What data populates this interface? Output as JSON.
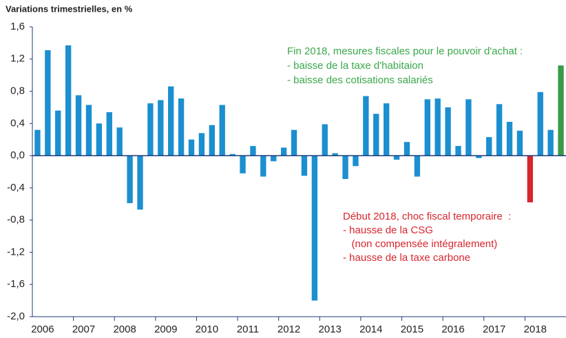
{
  "chart_data": {
    "type": "bar",
    "title": "Variations trimestrielles, en %",
    "categories": [
      "2006",
      null,
      null,
      null,
      "2007",
      null,
      null,
      null,
      "2008",
      null,
      null,
      null,
      "2009",
      null,
      null,
      null,
      "2010",
      null,
      null,
      null,
      "2011",
      null,
      null,
      null,
      "2012",
      null,
      null,
      null,
      "2013",
      null,
      null,
      null,
      "2014",
      null,
      null,
      null,
      "2015",
      null,
      null,
      null,
      "2016",
      null,
      null,
      null,
      "2017",
      null,
      null,
      null,
      "2018",
      null,
      null,
      null
    ],
    "values": [
      0.32,
      1.31,
      0.56,
      1.37,
      0.75,
      0.63,
      0.4,
      0.54,
      0.35,
      -0.59,
      -0.67,
      0.65,
      0.69,
      0.86,
      0.71,
      0.2,
      0.28,
      0.38,
      0.63,
      0.02,
      -0.22,
      0.12,
      -0.26,
      -0.07,
      0.1,
      0.32,
      -0.25,
      -1.8,
      0.39,
      0.03,
      -0.29,
      -0.13,
      0.74,
      0.52,
      0.65,
      -0.05,
      0.17,
      -0.26,
      0.7,
      0.71,
      0.6,
      0.12,
      0.7,
      -0.03,
      0.23,
      0.64,
      0.42,
      0.31,
      -0.58,
      0.79,
      0.32,
      1.12
    ],
    "colors": [
      "#1b8fd0",
      "#1b8fd0",
      "#1b8fd0",
      "#1b8fd0",
      "#1b8fd0",
      "#1b8fd0",
      "#1b8fd0",
      "#1b8fd0",
      "#1b8fd0",
      "#1b8fd0",
      "#1b8fd0",
      "#1b8fd0",
      "#1b8fd0",
      "#1b8fd0",
      "#1b8fd0",
      "#1b8fd0",
      "#1b8fd0",
      "#1b8fd0",
      "#1b8fd0",
      "#1b8fd0",
      "#1b8fd0",
      "#1b8fd0",
      "#1b8fd0",
      "#1b8fd0",
      "#1b8fd0",
      "#1b8fd0",
      "#1b8fd0",
      "#1b8fd0",
      "#1b8fd0",
      "#1b8fd0",
      "#1b8fd0",
      "#1b8fd0",
      "#1b8fd0",
      "#1b8fd0",
      "#1b8fd0",
      "#1b8fd0",
      "#1b8fd0",
      "#1b8fd0",
      "#1b8fd0",
      "#1b8fd0",
      "#1b8fd0",
      "#1b8fd0",
      "#1b8fd0",
      "#1b8fd0",
      "#1b8fd0",
      "#1b8fd0",
      "#1b8fd0",
      "#1b8fd0",
      "#d7262e",
      "#1b8fd0",
      "#1b8fd0",
      "#3a9a48"
    ],
    "ylim": [
      -2.0,
      1.6
    ],
    "yticks": [
      {
        "value": -2.0,
        "label": "-2,0"
      },
      {
        "value": -1.6,
        "label": "-1,6"
      },
      {
        "value": -1.2,
        "label": "-1,2"
      },
      {
        "value": -0.8,
        "label": "-0,8"
      },
      {
        "value": -0.4,
        "label": "-0,4"
      },
      {
        "value": 0,
        "label": "0,0"
      },
      {
        "value": 0.4,
        "label": "0,4"
      },
      {
        "value": 0.8,
        "label": "0,8"
      },
      {
        "value": 1.2,
        "label": "1,2"
      },
      {
        "value": 1.6,
        "label": "1,6"
      }
    ],
    "annotations": [
      {
        "color": "#3aa84a",
        "lines": [
          "Fin 2018, mesures fiscales pour le pouvoir d'achat :",
          "- baisse de la taxe d'habitaion",
          "- baisse des cotisations salariés"
        ]
      },
      {
        "color": "#d7262e",
        "lines": [
          "Début 2018, choc fiscal temporaire  :",
          "- hausse de la CSG",
          "   (non compensée intégralement)",
          "- hausse de la taxe carbone"
        ]
      }
    ]
  }
}
